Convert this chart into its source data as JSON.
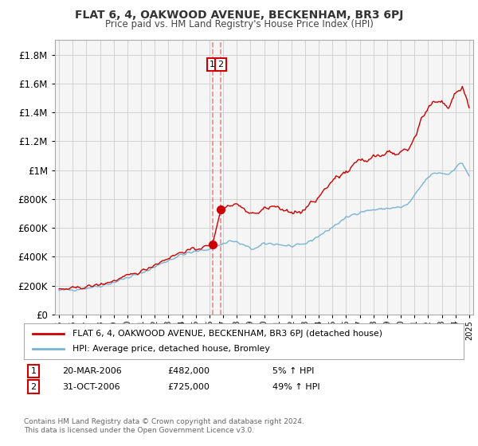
{
  "title": "FLAT 6, 4, OAKWOOD AVENUE, BECKENHAM, BR3 6PJ",
  "subtitle": "Price paid vs. HM Land Registry's House Price Index (HPI)",
  "legend_line1": "FLAT 6, 4, OAKWOOD AVENUE, BECKENHAM, BR3 6PJ (detached house)",
  "legend_line2": "HPI: Average price, detached house, Bromley",
  "footer": "Contains HM Land Registry data © Crown copyright and database right 2024.\nThis data is licensed under the Open Government Licence v3.0.",
  "sale1_date": "20-MAR-2006",
  "sale1_price": "£482,000",
  "sale1_hpi": "5% ↑ HPI",
  "sale2_date": "31-OCT-2006",
  "sale2_price": "£725,000",
  "sale2_hpi": "49% ↑ HPI",
  "sale1_year": 2006.22,
  "sale1_value": 482000,
  "sale2_year": 2006.83,
  "sale2_value": 725000,
  "hpi_color": "#7ab3d4",
  "property_color": "#cc0000",
  "marker_box_color": "#cc0000",
  "background_color": "#f5f5f5",
  "grid_color": "#cccccc",
  "ylim_max": 1900000,
  "xlim_start": 1994.7,
  "xlim_end": 2025.3
}
